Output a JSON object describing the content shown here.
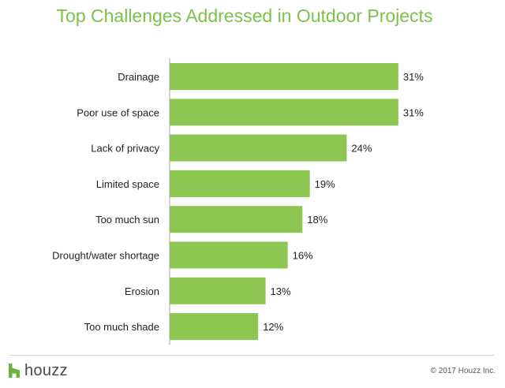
{
  "chart_data": {
    "type": "bar",
    "orientation": "horizontal",
    "title": "Top Challenges Addressed in Outdoor Projects",
    "categories": [
      "Drainage",
      "Poor use of space",
      "Lack of privacy",
      "Limited space",
      "Too much sun",
      "Drought/water shortage",
      "Erosion",
      "Too much shade"
    ],
    "values": [
      31,
      31,
      24,
      19,
      18,
      16,
      13,
      12
    ],
    "value_labels": [
      "31%",
      "31%",
      "24%",
      "19%",
      "18%",
      "16%",
      "13%",
      "12%"
    ],
    "unit": "%",
    "bar_color": "#8cc751",
    "axis_color": "#a6a6a6",
    "grid": false,
    "legend": "none"
  },
  "footer": {
    "logo_text": "houzz",
    "logo_icon": "houzz-logo-icon",
    "logo_color": "#6bb341",
    "copyright": "© 2017 Houzz Inc."
  },
  "colors": {
    "title": "#7cc24a"
  }
}
